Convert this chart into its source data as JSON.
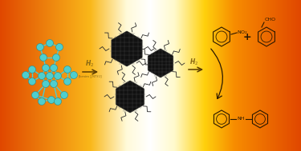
{
  "arrow_color": "#2a1a00",
  "text_color": "#2a1a00",
  "h2_label": "H$_2$",
  "h2_label2": "H$_2$",
  "solvent_label": "[bmim][NTf$_2$]",
  "nanoparticle_color": "#111111",
  "nanoparticle_edge": "#222222",
  "ligand_color": "#2a2a2a",
  "rh_node_color": "#4ecece",
  "rh_bond_color": "#4ecece",
  "organic_color": "#2a1800",
  "bg_stops": [
    [
      0.0,
      [
        0.88,
        0.28,
        0.0
      ]
    ],
    [
      0.3,
      [
        0.98,
        0.72,
        0.1
      ]
    ],
    [
      0.42,
      [
        1.0,
        0.98,
        0.85
      ]
    ],
    [
      0.5,
      [
        1.0,
        1.0,
        1.0
      ]
    ],
    [
      0.58,
      [
        1.0,
        0.98,
        0.8
      ]
    ],
    [
      0.68,
      [
        1.0,
        0.82,
        0.05
      ]
    ],
    [
      0.78,
      [
        0.97,
        0.55,
        0.0
      ]
    ],
    [
      1.0,
      [
        0.88,
        0.28,
        0.0
      ]
    ]
  ]
}
